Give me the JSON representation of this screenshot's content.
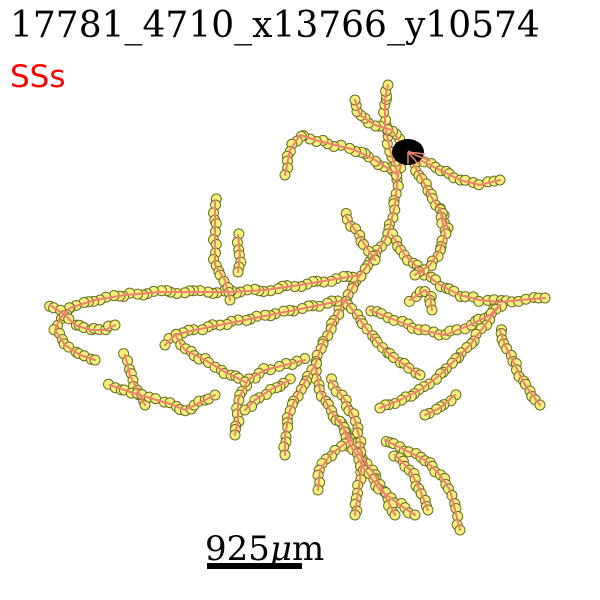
{
  "figure": {
    "title": "17781_4710_x13766_y10574",
    "label": "SSs",
    "label_color": "#ff0000"
  },
  "scale_bar": {
    "value": "925",
    "unit_greek": "μ",
    "unit_rest": "m"
  },
  "colors": {
    "edge": "#f08070",
    "node_fill": "#f4f07a",
    "node_stroke": "#6b6b2a",
    "soma": "#000000"
  }
}
